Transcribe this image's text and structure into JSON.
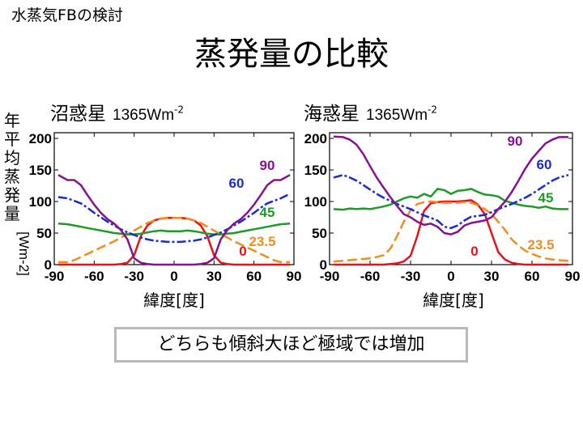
{
  "header": "水蒸気FBの検討",
  "title": "蒸発量の比較",
  "y_label_chars": [
    "年",
    "平",
    "均",
    "蒸",
    "発",
    "量"
  ],
  "y_label_unit": "[Wm-2]",
  "conclusion": "どちらも傾斜大ほど極域では増加",
  "panels": [
    {
      "title": "沼惑星",
      "subtitle": "1365Wm",
      "subtitle_exp": "-2",
      "xlabel": "緯度[度]"
    },
    {
      "title": "海惑星",
      "subtitle": "1365Wm",
      "subtitle_exp": "-2",
      "xlabel": "緯度[度]"
    }
  ],
  "chart_data": [
    {
      "type": "line",
      "title": "沼惑星 1365Wm-2",
      "xlabel": "緯度[度]",
      "ylabel": "年平均蒸発量[Wm-2]",
      "xlim": [
        -90,
        90
      ],
      "ylim": [
        0,
        200
      ],
      "xticks": [
        -90,
        -60,
        -30,
        0,
        30,
        60,
        90
      ],
      "yticks": [
        0,
        50,
        100,
        150,
        200
      ],
      "x": [
        -87,
        -80,
        -75,
        -70,
        -65,
        -60,
        -55,
        -50,
        -45,
        -40,
        -35,
        -30,
        -25,
        -20,
        -15,
        -10,
        -5,
        0,
        5,
        10,
        15,
        20,
        25,
        30,
        35,
        40,
        45,
        50,
        55,
        60,
        65,
        70,
        75,
        80,
        87
      ],
      "series": [
        {
          "name": "0",
          "label": "0",
          "color": "#e8101a",
          "dash": "solid",
          "values": [
            0,
            0,
            0,
            0,
            0,
            0,
            0,
            0,
            0,
            1,
            3,
            15,
            45,
            62,
            70,
            73,
            74,
            74,
            74,
            73,
            70,
            62,
            45,
            15,
            3,
            1,
            0,
            0,
            0,
            0,
            0,
            0,
            0,
            0,
            0
          ]
        },
        {
          "name": "23.5",
          "label": "23.5",
          "color": "#f28c1c",
          "dash": "dashed",
          "values": [
            4,
            4,
            7,
            12,
            17,
            22,
            27,
            32,
            37,
            43,
            48,
            54,
            60,
            66,
            70,
            73,
            74,
            74,
            74,
            73,
            70,
            66,
            60,
            54,
            48,
            43,
            37,
            32,
            27,
            22,
            17,
            12,
            7,
            4,
            4
          ]
        },
        {
          "name": "45",
          "label": "45",
          "color": "#1d9a28",
          "dash": "solid",
          "values": [
            65,
            64,
            62,
            60,
            58,
            56,
            54,
            52,
            50,
            49,
            48,
            48,
            49,
            51,
            53,
            54,
            53,
            53,
            53,
            54,
            53,
            51,
            49,
            48,
            48,
            49,
            50,
            52,
            54,
            56,
            58,
            60,
            62,
            64,
            65
          ]
        },
        {
          "name": "60",
          "label": "60",
          "color": "#1a2ad6",
          "dash": "dashdot",
          "values": [
            107,
            105,
            101,
            97,
            90,
            82,
            75,
            68,
            62,
            56,
            51,
            47,
            43,
            40,
            38,
            37,
            36,
            36,
            36,
            37,
            38,
            40,
            43,
            47,
            51,
            56,
            62,
            68,
            75,
            82,
            90,
            97,
            101,
            105,
            112
          ]
        },
        {
          "name": "90",
          "label": "90",
          "color": "#86128f",
          "dash": "solid",
          "values": [
            142,
            134,
            134,
            126,
            110,
            95,
            82,
            72,
            65,
            55,
            40,
            10,
            3,
            1,
            0,
            0,
            0,
            0,
            0,
            0,
            0,
            1,
            3,
            10,
            40,
            55,
            65,
            72,
            82,
            95,
            110,
            126,
            134,
            134,
            142
          ]
        }
      ]
    },
    {
      "type": "line",
      "title": "海惑星 1365Wm-2",
      "xlabel": "緯度[度]",
      "ylabel": "年平均蒸発量[Wm-2]",
      "xlim": [
        -90,
        90
      ],
      "ylim": [
        0,
        200
      ],
      "xticks": [
        -90,
        -60,
        -30,
        0,
        30,
        60,
        90
      ],
      "yticks": [
        0,
        50,
        100,
        150,
        200
      ],
      "x": [
        -87,
        -80,
        -75,
        -70,
        -65,
        -60,
        -55,
        -50,
        -45,
        -40,
        -35,
        -30,
        -25,
        -20,
        -15,
        -10,
        -5,
        0,
        5,
        10,
        15,
        20,
        25,
        30,
        35,
        40,
        45,
        50,
        55,
        60,
        65,
        70,
        75,
        80,
        87
      ],
      "series": [
        {
          "name": "0",
          "label": "0",
          "color": "#e8101a",
          "dash": "solid",
          "values": [
            0,
            0,
            0,
            0,
            0,
            0,
            0,
            0,
            1,
            2,
            5,
            14,
            45,
            85,
            97,
            99,
            100,
            100,
            100,
            101,
            102,
            95,
            80,
            50,
            20,
            8,
            3,
            1,
            0,
            0,
            0,
            0,
            0,
            0,
            0
          ]
        },
        {
          "name": "23.5",
          "label": "23.5",
          "color": "#f28c1c",
          "dash": "dashed",
          "values": [
            5,
            6,
            7,
            8,
            9,
            10,
            12,
            15,
            25,
            45,
            68,
            86,
            96,
            99,
            100,
            99,
            98,
            98,
            98,
            99,
            98,
            94,
            88,
            80,
            68,
            55,
            40,
            30,
            22,
            17,
            13,
            10,
            8,
            7,
            6
          ]
        },
        {
          "name": "45",
          "label": "45",
          "color": "#1d9a28",
          "dash": "solid",
          "values": [
            88,
            87,
            89,
            88,
            89,
            88,
            90,
            92,
            95,
            100,
            105,
            108,
            106,
            112,
            108,
            120,
            118,
            112,
            117,
            118,
            120,
            115,
            111,
            110,
            108,
            101,
            98,
            95,
            93,
            92,
            90,
            92,
            89,
            88,
            88
          ]
        },
        {
          "name": "60",
          "label": "60",
          "color": "#1a2ad6",
          "dash": "dashdot",
          "values": [
            138,
            142,
            138,
            133,
            126,
            119,
            112,
            106,
            101,
            96,
            92,
            88,
            83,
            78,
            74,
            70,
            60,
            58,
            62,
            70,
            76,
            77,
            79,
            83,
            88,
            92,
            96,
            101,
            106,
            112,
            119,
            126,
            133,
            138,
            142
          ]
        },
        {
          "name": "90",
          "label": "90",
          "color": "#86128f",
          "dash": "solid",
          "values": [
            203,
            202,
            198,
            190,
            175,
            156,
            138,
            122,
            107,
            93,
            80,
            75,
            68,
            63,
            65,
            60,
            50,
            48,
            52,
            62,
            66,
            68,
            70,
            75,
            88,
            100,
            115,
            133,
            152,
            168,
            180,
            192,
            198,
            202,
            202
          ]
        }
      ]
    }
  ]
}
